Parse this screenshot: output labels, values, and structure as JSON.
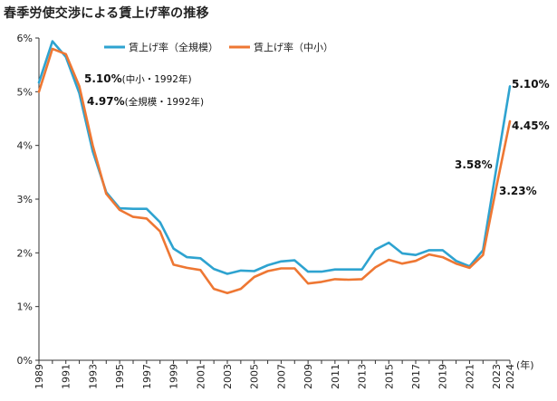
{
  "chart_data": {
    "type": "line",
    "title": "春季労使交渉による賃上げ率の推移",
    "xlabel": "(年)",
    "ylabel": "",
    "x": [
      1989,
      1990,
      1991,
      1992,
      1993,
      1994,
      1995,
      1996,
      1997,
      1998,
      1999,
      2000,
      2001,
      2002,
      2003,
      2004,
      2005,
      2006,
      2007,
      2008,
      2009,
      2010,
      2011,
      2012,
      2013,
      2014,
      2015,
      2016,
      2017,
      2018,
      2019,
      2020,
      2021,
      2022,
      2023,
      2024
    ],
    "x_tick_labels": [
      "1989",
      "1991",
      "1993",
      "1995",
      "1997",
      "1999",
      "2001",
      "2003",
      "2005",
      "2007",
      "2009",
      "2011",
      "2013",
      "2015",
      "2017",
      "2019",
      "2021",
      "2023",
      "2024"
    ],
    "y_tick_labels": [
      "0%",
      "1%",
      "2%",
      "3%",
      "4%",
      "5%",
      "6%"
    ],
    "ylim": [
      0,
      6
    ],
    "grid": false,
    "legend_position": "top-right",
    "series": [
      {
        "name": "賃上げ率（全規模）",
        "color": "#2ea3d0",
        "values": [
          5.17,
          5.94,
          5.65,
          4.97,
          3.89,
          3.13,
          2.83,
          2.82,
          2.82,
          2.57,
          2.08,
          1.92,
          1.9,
          1.7,
          1.61,
          1.67,
          1.66,
          1.77,
          1.84,
          1.86,
          1.65,
          1.65,
          1.69,
          1.69,
          1.69,
          2.06,
          2.19,
          1.99,
          1.96,
          2.05,
          2.05,
          1.85,
          1.75,
          2.05,
          3.58,
          5.1
        ]
      },
      {
        "name": "賃上げ率（中小）",
        "color": "#ee7733",
        "values": [
          5.0,
          5.8,
          5.7,
          5.1,
          4.0,
          3.1,
          2.8,
          2.67,
          2.64,
          2.4,
          1.78,
          1.72,
          1.68,
          1.33,
          1.25,
          1.33,
          1.55,
          1.66,
          1.71,
          1.71,
          1.43,
          1.46,
          1.51,
          1.5,
          1.51,
          1.73,
          1.87,
          1.8,
          1.85,
          1.97,
          1.92,
          1.8,
          1.72,
          1.96,
          3.23,
          4.45
        ]
      }
    ],
    "annotations": [
      {
        "text": "5.10%",
        "sub": "(中小・1992年)"
      },
      {
        "text": "4.97%",
        "sub": "(全規模・1992年)"
      },
      {
        "text": "5.10%"
      },
      {
        "text": "4.45%"
      },
      {
        "text": "3.58%"
      },
      {
        "text": "3.23%"
      }
    ]
  }
}
